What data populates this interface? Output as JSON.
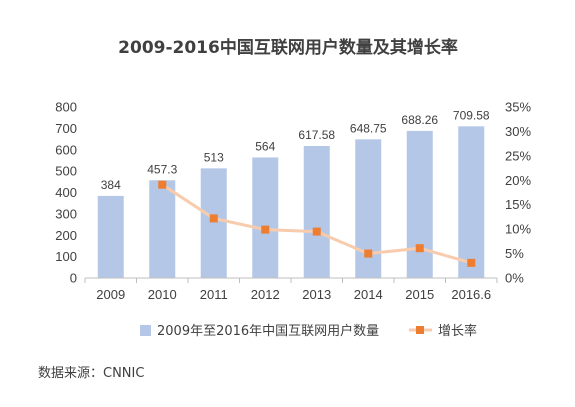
{
  "chart_data": {
    "type": "bar",
    "title": "2009-2016中国互联网用户数量及其增长率",
    "categories": [
      "2009",
      "2010",
      "2011",
      "2012",
      "2013",
      "2014",
      "2015",
      "2016.6"
    ],
    "series": [
      {
        "name": "2009年至2016年中国互联网用户数量",
        "type": "bar",
        "axis": "left",
        "color": "#b4c7e7",
        "values": [
          384,
          457.3,
          513,
          564,
          617.58,
          648.75,
          688.26,
          709.58
        ],
        "labels": [
          "384",
          "457.3",
          "513",
          "564",
          "617.58",
          "648.75",
          "688.26",
          "709.58"
        ]
      },
      {
        "name": "增长率",
        "type": "line",
        "axis": "right",
        "line_color": "#f8cbad",
        "marker_color": "#ed7d31",
        "values": [
          null,
          19.1,
          12.2,
          9.9,
          9.5,
          5.0,
          6.1,
          3.1
        ]
      }
    ],
    "y_left": {
      "ylim": [
        0,
        800
      ],
      "ticks": [
        "0",
        "100",
        "200",
        "300",
        "400",
        "500",
        "600",
        "700",
        "800"
      ]
    },
    "y_right": {
      "ylim": [
        0,
        35
      ],
      "ticks": [
        "0%",
        "5%",
        "10%",
        "15%",
        "20%",
        "25%",
        "30%",
        "35%"
      ]
    },
    "legend_position": "bottom",
    "grid": false
  },
  "source_note": "数据来源：CNNIC"
}
